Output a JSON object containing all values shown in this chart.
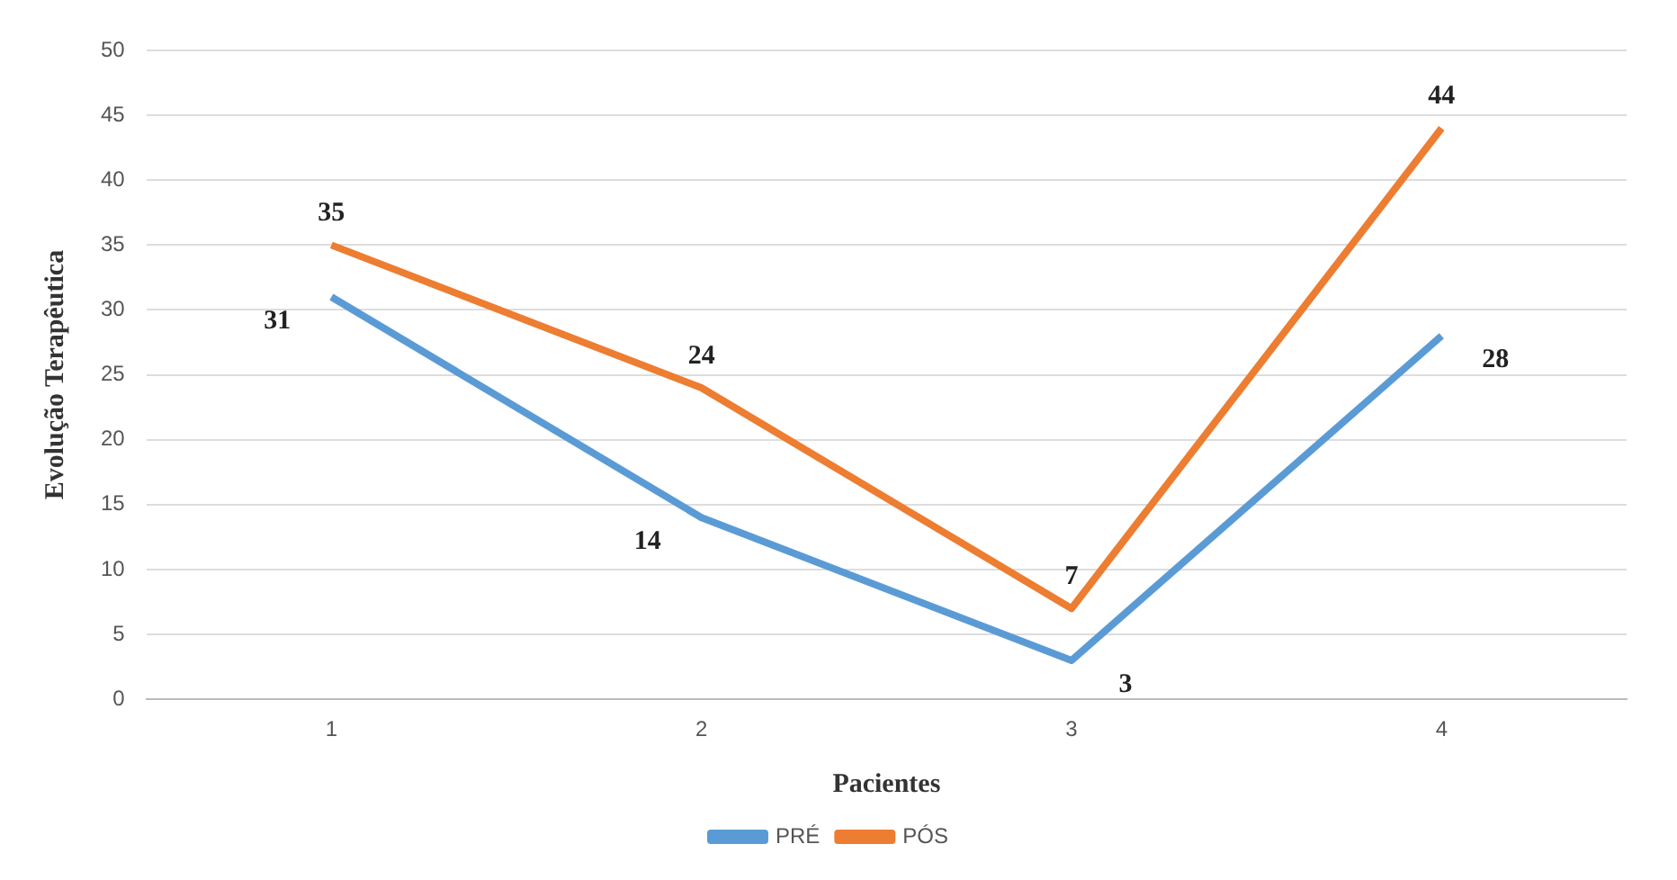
{
  "chart_data": {
    "type": "line",
    "xlabel": "Pacientes",
    "ylabel": "Evolução Terapêutica",
    "categories": [
      "1",
      "2",
      "3",
      "4"
    ],
    "series": [
      {
        "name": "PRÉ",
        "color": "#5b9bd5",
        "values": [
          31,
          14,
          3,
          28
        ]
      },
      {
        "name": "PÓS",
        "color": "#ed7d31",
        "values": [
          35,
          24,
          7,
          44
        ]
      }
    ],
    "ylim": [
      0,
      50
    ],
    "yticks": [
      0,
      5,
      10,
      15,
      20,
      25,
      30,
      35,
      40,
      45,
      50
    ],
    "grid": "y",
    "legend": "bottom",
    "marker": "none",
    "line_style": "solid",
    "data_labels": true
  }
}
